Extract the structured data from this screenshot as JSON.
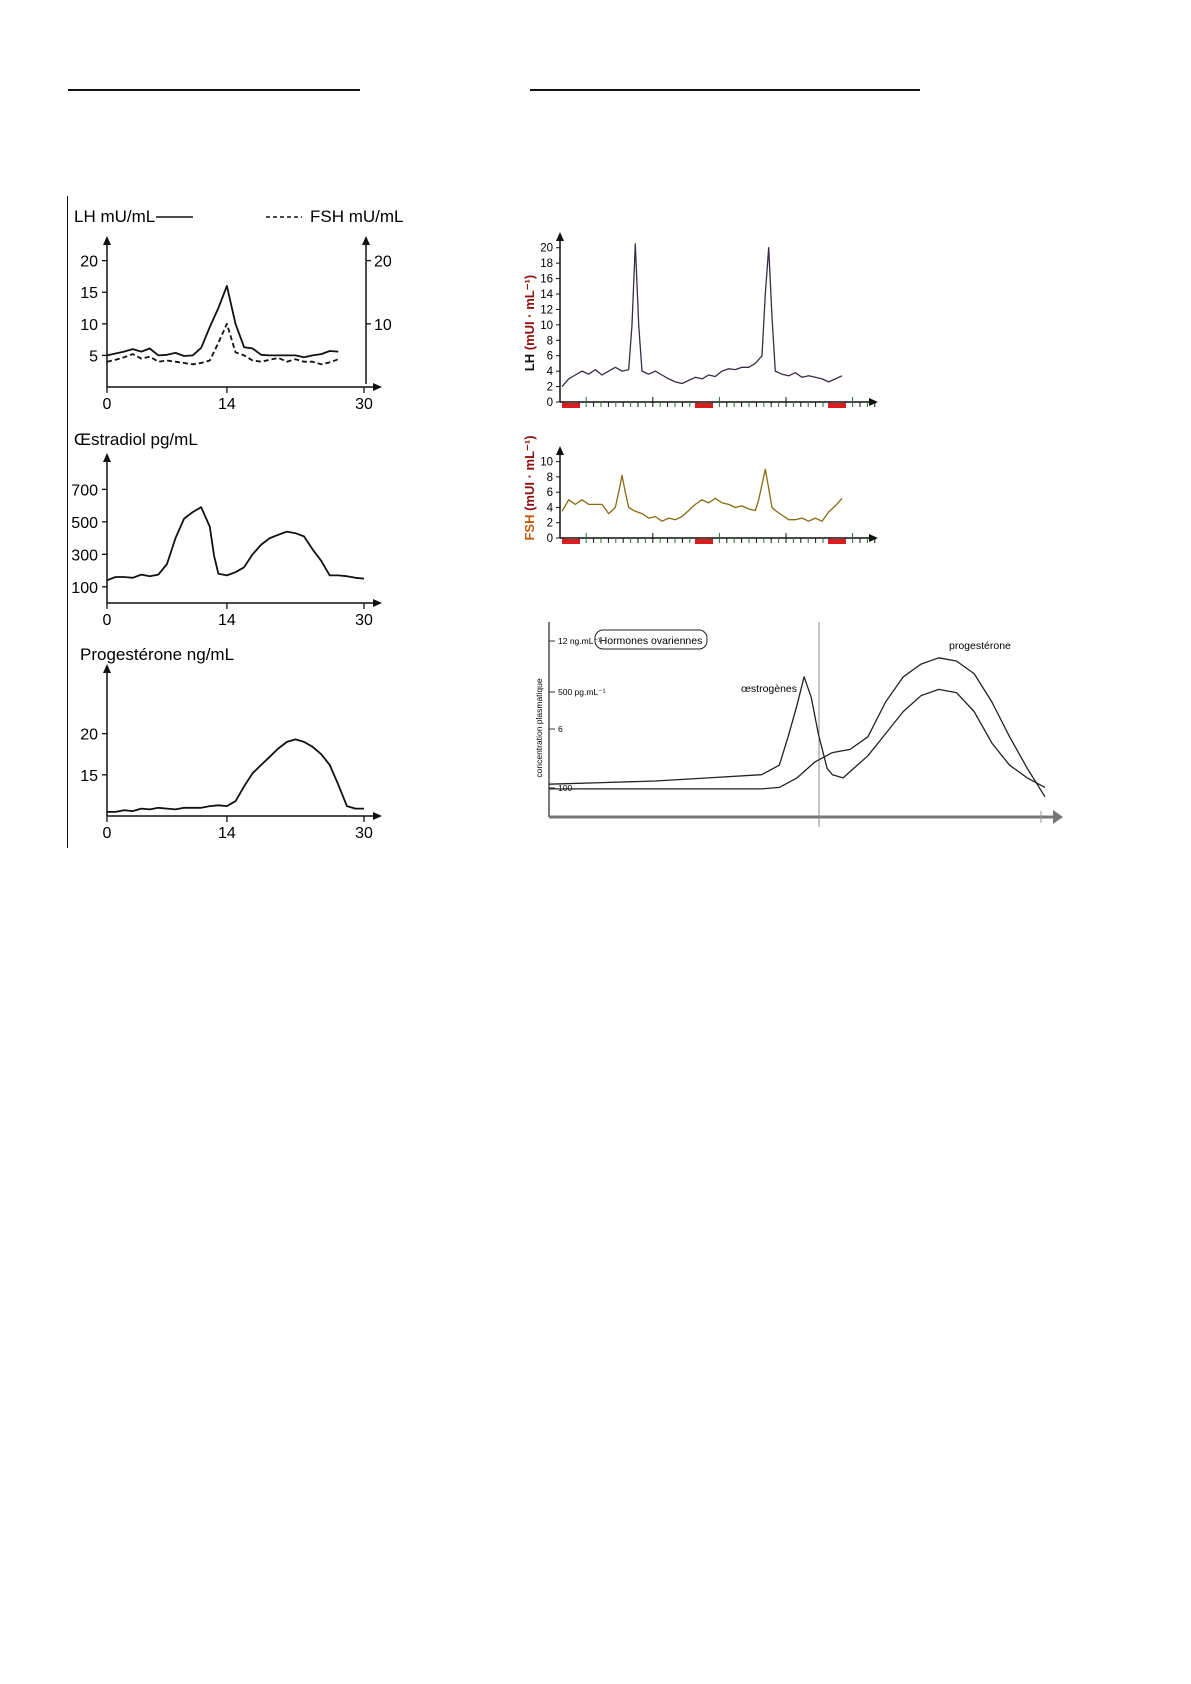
{
  "chart_data": [
    {
      "type": "line",
      "id": "lh_fsh_left",
      "y_label_left": "LH mU/mL",
      "y_label_right": "FSH mU/mL",
      "xlim": [
        0,
        30
      ],
      "ylim_left": [
        0,
        22
      ],
      "ylim_right": [
        0,
        22
      ],
      "x_ticks": [
        0,
        14,
        30
      ],
      "y_ticks_left": [
        5,
        10,
        15,
        20
      ],
      "y_ticks_right": [
        10,
        20
      ],
      "series": [
        {
          "name": "LH mU/mL",
          "style": "solid",
          "x": [
            0,
            1,
            2,
            3,
            4,
            5,
            6,
            7,
            8,
            9,
            10,
            11,
            12,
            13,
            14,
            15,
            16,
            17,
            18,
            19,
            20,
            21,
            22,
            23,
            24,
            25,
            26,
            27
          ],
          "y": [
            5,
            5.3,
            5.6,
            6,
            5.6,
            6.1,
            5,
            5.1,
            5.4,
            4.9,
            5,
            6.2,
            9.5,
            12.5,
            16,
            10,
            6.3,
            6.1,
            5.1,
            5,
            5,
            5,
            5,
            4.7,
            5,
            5.2,
            5.7,
            5.6
          ]
        },
        {
          "name": "FSH mU/mL",
          "style": "dashed",
          "x": [
            0,
            1,
            2,
            3,
            4,
            5,
            6,
            7,
            8,
            9,
            10,
            11,
            12,
            13,
            14,
            15,
            16,
            17,
            18,
            19,
            20,
            21,
            22,
            23,
            24,
            25,
            26,
            27
          ],
          "y": [
            4,
            4.3,
            4.7,
            5.2,
            4.5,
            4.8,
            4,
            4.2,
            4,
            3.8,
            3.6,
            3.8,
            4.2,
            7,
            10,
            5.5,
            5,
            4.2,
            4,
            4.3,
            4.6,
            4,
            4.4,
            4,
            4,
            3.6,
            3.9,
            4.4
          ]
        }
      ]
    },
    {
      "type": "line",
      "id": "oestradiol_left",
      "y_label": "Œstradiol pg/mL",
      "xlim": [
        0,
        30
      ],
      "ylim": [
        0,
        850
      ],
      "x_ticks": [
        0,
        14,
        30
      ],
      "y_ticks": [
        100,
        300,
        500,
        700
      ],
      "series": [
        {
          "name": "Œstradiol",
          "x": [
            0,
            1,
            2,
            3,
            4,
            5,
            6,
            7,
            8,
            9,
            10,
            11,
            12,
            12.5,
            13,
            14,
            15,
            16,
            17,
            18,
            19,
            20,
            21,
            22,
            23,
            24,
            25,
            26,
            27,
            28,
            29,
            30
          ],
          "y": [
            140,
            160,
            160,
            155,
            175,
            165,
            175,
            240,
            400,
            520,
            560,
            590,
            470,
            290,
            180,
            170,
            190,
            220,
            300,
            360,
            400,
            420,
            440,
            430,
            410,
            330,
            260,
            170,
            170,
            165,
            155,
            150
          ]
        }
      ]
    },
    {
      "type": "line",
      "id": "progesterone_left",
      "y_label": "Progestérone ng/mL",
      "xlim": [
        0,
        30
      ],
      "ylim": [
        10,
        27
      ],
      "x_ticks": [
        0,
        14,
        30
      ],
      "y_ticks": [
        15,
        20
      ],
      "series": [
        {
          "name": "Progestérone",
          "x": [
            0,
            1,
            2,
            3,
            4,
            5,
            6,
            7,
            8,
            9,
            10,
            11,
            12,
            13,
            14,
            15,
            16,
            17,
            18,
            19,
            20,
            21,
            22,
            23,
            24,
            25,
            26,
            27,
            28,
            29,
            30
          ],
          "y": [
            10.5,
            10.5,
            10.7,
            10.6,
            10.9,
            10.8,
            11,
            10.9,
            10.8,
            11,
            11,
            11,
            11.2,
            11.3,
            11.2,
            11.8,
            13.6,
            15.2,
            16.2,
            17.2,
            18.2,
            19,
            19.3,
            19,
            18.4,
            17.5,
            16.2,
            13.8,
            11.2,
            10.9,
            10.9
          ]
        }
      ]
    },
    {
      "type": "line",
      "id": "lh_right",
      "y_label_prefix": "LH ",
      "y_label_unit": "(mUI · mL⁻¹)",
      "xlim": [
        0,
        84
      ],
      "ylim": [
        0,
        21
      ],
      "y_ticks": [
        0,
        2,
        4,
        6,
        8,
        10,
        12,
        14,
        16,
        18,
        20
      ],
      "series": [
        {
          "name": "LH",
          "x": [
            0,
            2,
            4,
            6,
            8,
            10,
            12,
            14,
            16,
            18,
            20,
            21,
            22,
            23,
            24,
            26,
            28,
            30,
            32,
            34,
            36,
            38,
            40,
            42,
            44,
            46,
            48,
            50,
            52,
            54,
            56,
            58,
            60,
            61,
            62,
            63,
            64,
            66,
            68,
            70,
            72,
            74,
            76,
            78,
            80,
            82,
            84
          ],
          "y": [
            2,
            3,
            3.5,
            4,
            3.6,
            4.2,
            3.5,
            4,
            4.5,
            4,
            4.2,
            10,
            20.5,
            10,
            4,
            3.6,
            4,
            3.5,
            3,
            2.6,
            2.4,
            2.8,
            3.2,
            3,
            3.5,
            3.3,
            4,
            4.3,
            4.2,
            4.5,
            4.5,
            5,
            6,
            14,
            20,
            11,
            4,
            3.6,
            3.4,
            3.8,
            3.2,
            3.4,
            3.2,
            3,
            2.6,
            3,
            3.4
          ]
        }
      ]
    },
    {
      "type": "line",
      "id": "fsh_right",
      "y_label_prefix": "FSH ",
      "y_label_unit": "(mUI · mL⁻¹)",
      "xlim": [
        0,
        84
      ],
      "ylim": [
        0,
        11
      ],
      "y_ticks": [
        0,
        2,
        4,
        6,
        8,
        10
      ],
      "series": [
        {
          "name": "FSH",
          "x": [
            0,
            2,
            4,
            6,
            8,
            10,
            12,
            14,
            16,
            17,
            18,
            19,
            20,
            22,
            24,
            26,
            28,
            30,
            32,
            34,
            36,
            38,
            40,
            42,
            44,
            46,
            48,
            50,
            52,
            54,
            56,
            58,
            59,
            60,
            61,
            62,
            63,
            64,
            66,
            68,
            70,
            72,
            74,
            76,
            78,
            80,
            82,
            84
          ],
          "y": [
            3.5,
            5,
            4.4,
            5,
            4.4,
            4.4,
            4.4,
            3.2,
            4,
            6,
            8.2,
            6,
            4,
            3.5,
            3.2,
            2.6,
            2.8,
            2.2,
            2.6,
            2.4,
            2.8,
            3.6,
            4.4,
            5,
            4.6,
            5.2,
            4.6,
            4.4,
            4,
            4.2,
            3.8,
            3.6,
            5,
            7,
            9,
            6.5,
            4,
            3.6,
            3,
            2.4,
            2.4,
            2.6,
            2.2,
            2.6,
            2.2,
            3.4,
            4.2,
            5.2
          ]
        }
      ]
    },
    {
      "type": "line",
      "id": "ovarian_hormones_right",
      "title": "Hormones ovariennes",
      "y_label": "concentration plasmatique",
      "y_tick_labels": [
        "12 ng.mL⁻¹",
        "500 pg.mL⁻¹",
        "6",
        "100"
      ],
      "xlim": [
        0,
        28
      ],
      "ylim": [
        0,
        100
      ],
      "grid": false,
      "series": [
        {
          "name": "œstrogènes",
          "x": [
            0,
            3,
            6,
            9,
            12,
            13,
            13.5,
            14,
            14.4,
            14.8,
            15.2,
            15.7,
            16,
            16.6,
            17.2,
            18,
            19,
            20,
            21,
            22,
            23,
            24,
            25,
            26,
            27,
            28
          ],
          "y": [
            10,
            11,
            12,
            14,
            16,
            22,
            40,
            60,
            78,
            65,
            42,
            20,
            16,
            14,
            20,
            28,
            42,
            56,
            66,
            70,
            68,
            56,
            36,
            22,
            14,
            8
          ]
        },
        {
          "name": "progestérone",
          "x": [
            0,
            3,
            6,
            9,
            12,
            13,
            14,
            15,
            16,
            17,
            18,
            19,
            20,
            21,
            22,
            23,
            24,
            25,
            26,
            27,
            28
          ],
          "y": [
            7,
            7,
            7,
            7,
            7,
            8,
            14,
            24,
            30,
            32,
            40,
            62,
            78,
            86,
            90,
            88,
            80,
            62,
            40,
            20,
            2
          ]
        }
      ]
    }
  ]
}
